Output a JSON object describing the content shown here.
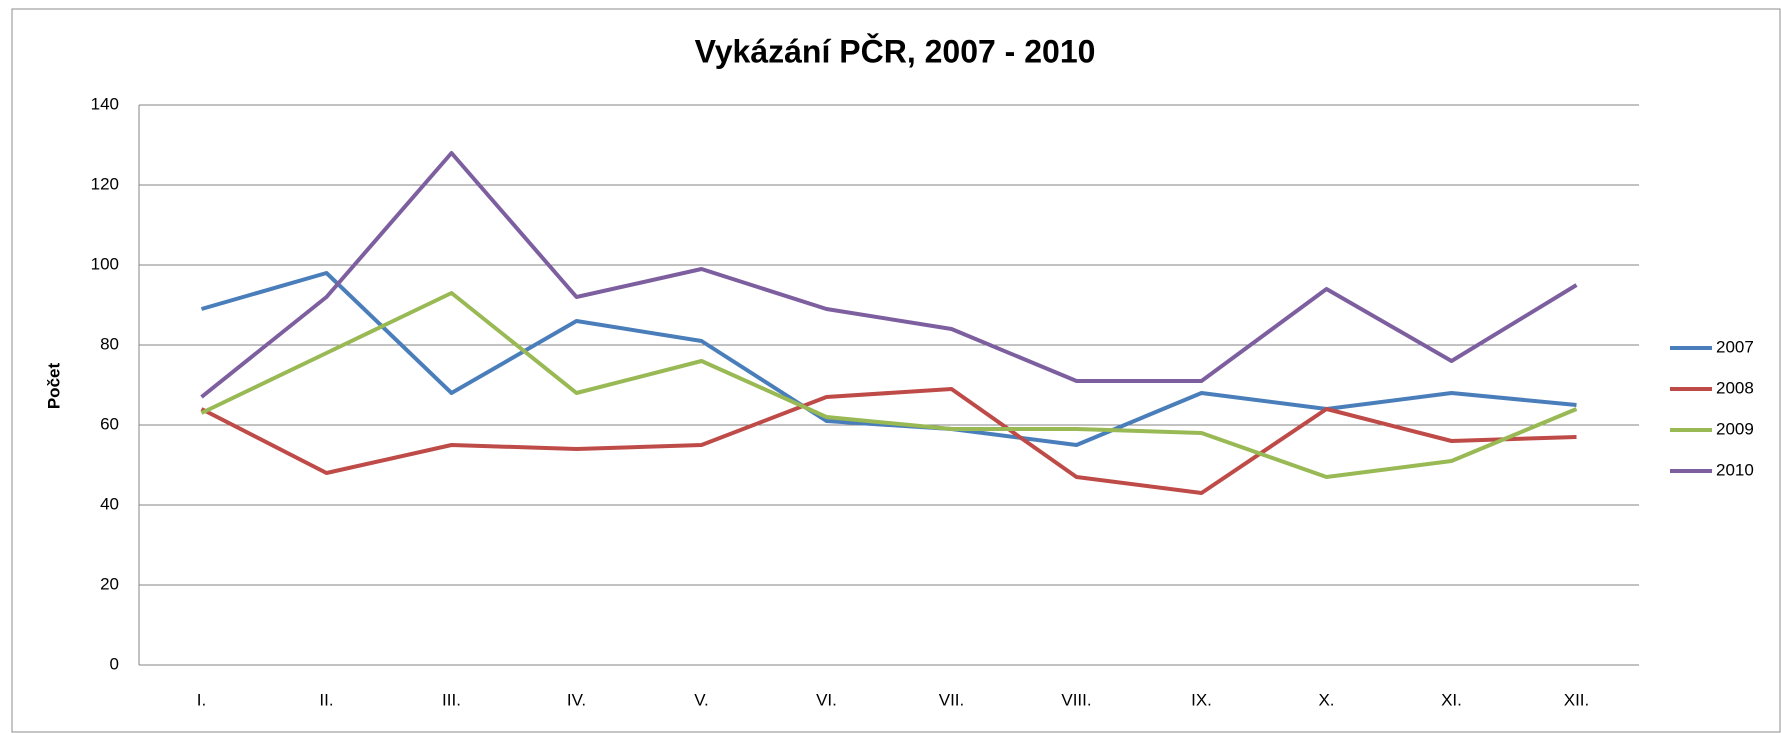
{
  "chart_data": {
    "type": "line",
    "title": "Vykázání PČR, 2007 - 2010",
    "y_label": "Počet",
    "categories": [
      "I.",
      "II.",
      "III.",
      "IV.",
      "V.",
      "VI.",
      "VII.",
      "VIII.",
      "IX.",
      "X.",
      "XI.",
      "XII."
    ],
    "series": [
      {
        "name": "2007",
        "color": "#4a7ebb",
        "values": [
          89,
          98,
          68,
          86,
          81,
          61,
          59,
          55,
          68,
          64,
          68,
          65
        ]
      },
      {
        "name": "2008",
        "color": "#be4b48",
        "values": [
          64,
          48,
          55,
          54,
          55,
          67,
          69,
          47,
          43,
          64,
          56,
          57
        ]
      },
      {
        "name": "2009",
        "color": "#98b954",
        "values": [
          63,
          78,
          93,
          68,
          76,
          62,
          59,
          59,
          58,
          47,
          51,
          64
        ]
      },
      {
        "name": "2010",
        "color": "#7d5fa0",
        "values": [
          67,
          92,
          128,
          92,
          99,
          89,
          84,
          71,
          71,
          94,
          76,
          95
        ]
      }
    ],
    "ylim": [
      0,
      140
    ],
    "yticks": [
      0,
      20,
      40,
      60,
      80,
      100,
      120,
      140
    ],
    "grid": true,
    "legend": "right"
  }
}
